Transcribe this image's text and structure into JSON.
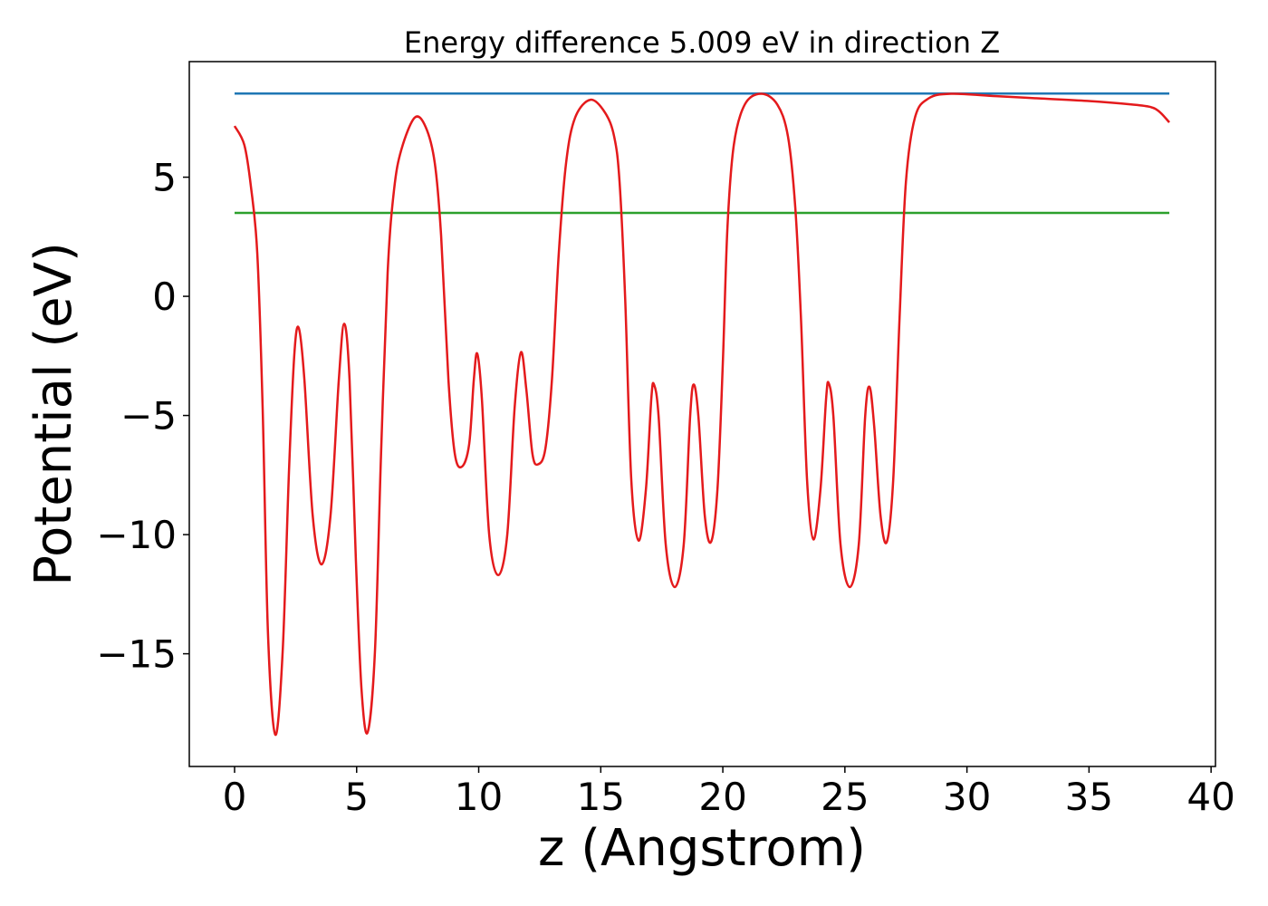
{
  "chart_data": {
    "type": "line",
    "title": "Energy difference 5.009 eV in direction Z",
    "x_label": "z (Angstrom)",
    "y_label": "Potential (eV)",
    "xlim": [
      -1.855,
      40.18
    ],
    "ylim": [
      -19.73,
      9.85
    ],
    "xticks": [
      0,
      5,
      10,
      15,
      20,
      25,
      30,
      35,
      40
    ],
    "yticks": [
      -15,
      -10,
      -5,
      0,
      5
    ],
    "series": [
      {
        "color": "#1f77b4",
        "x": [
          0,
          38.29
        ],
        "values": [
          8.51,
          8.51
        ]
      },
      {
        "color": "#2ca02c",
        "x": [
          0,
          38.29
        ],
        "values": [
          3.5,
          3.5
        ]
      },
      {
        "color": "#e41a1c",
        "x": [
          0,
          0.4,
          0.67,
          0.93,
          1.15,
          1.37,
          1.67,
          1.97,
          2.23,
          2.45,
          2.63,
          2.86,
          3.2,
          3.56,
          3.93,
          4.27,
          4.49,
          4.71,
          4.97,
          5.2,
          5.45,
          5.75,
          6.0,
          6.27,
          6.53,
          6.83,
          7.38,
          7.83,
          8.2,
          8.46,
          8.76,
          9.02,
          9.31,
          9.61,
          9.8,
          9.94,
          10.13,
          10.43,
          10.8,
          11.17,
          11.47,
          11.73,
          11.95,
          12.2,
          12.43,
          12.73,
          13.0,
          13.28,
          13.58,
          13.95,
          14.58,
          15.18,
          15.55,
          15.77,
          16.0,
          16.25,
          16.55,
          16.85,
          17.07,
          17.18,
          17.37,
          17.66,
          18.03,
          18.4,
          18.66,
          18.81,
          19.0,
          19.26,
          19.52,
          19.78,
          20.0,
          20.19,
          20.45,
          20.9,
          21.57,
          22.23,
          22.67,
          22.97,
          23.2,
          23.45,
          23.71,
          24.0,
          24.23,
          24.34,
          24.53,
          24.82,
          25.2,
          25.57,
          25.83,
          26.01,
          26.2,
          26.46,
          26.72,
          26.98,
          27.24,
          27.5,
          27.87,
          28.42,
          29.35,
          31.2,
          33.06,
          34.92,
          36.77,
          37.5,
          37.88,
          38.29
        ],
        "values": [
          7.15,
          6.35,
          4.6,
          1.8,
          -4.7,
          -14.2,
          -18.4,
          -14.9,
          -7.3,
          -2.4,
          -1.33,
          -3.5,
          -9.2,
          -11.25,
          -9.2,
          -3.5,
          -1.15,
          -3.5,
          -11.1,
          -16.5,
          -18.3,
          -14.9,
          -6.6,
          1.0,
          4.45,
          6.15,
          7.5,
          7.1,
          5.6,
          2.55,
          -3.5,
          -6.6,
          -7.15,
          -6.2,
          -3.5,
          -2.4,
          -4.3,
          -10.0,
          -11.7,
          -10.0,
          -4.7,
          -2.35,
          -3.9,
          -6.6,
          -7.05,
          -6.4,
          -3.5,
          1.8,
          5.6,
          7.5,
          8.25,
          7.7,
          6.7,
          4.8,
          -0.1,
          -7.7,
          -10.25,
          -8.1,
          -4.3,
          -3.7,
          -5.05,
          -10.4,
          -12.2,
          -10.4,
          -5.05,
          -3.7,
          -5.05,
          -9.2,
          -10.3,
          -8.1,
          -2.8,
          2.9,
          6.35,
          8.05,
          8.5,
          8.05,
          6.7,
          3.7,
          -0.9,
          -7.7,
          -10.2,
          -8.1,
          -4.3,
          -3.65,
          -5.05,
          -10.4,
          -12.2,
          -10.4,
          -5.05,
          -3.8,
          -5.45,
          -9.2,
          -10.3,
          -7.7,
          -0.9,
          4.8,
          7.5,
          8.3,
          8.5,
          8.4,
          8.3,
          8.2,
          8.05,
          7.95,
          7.75,
          7.3
        ]
      }
    ]
  }
}
